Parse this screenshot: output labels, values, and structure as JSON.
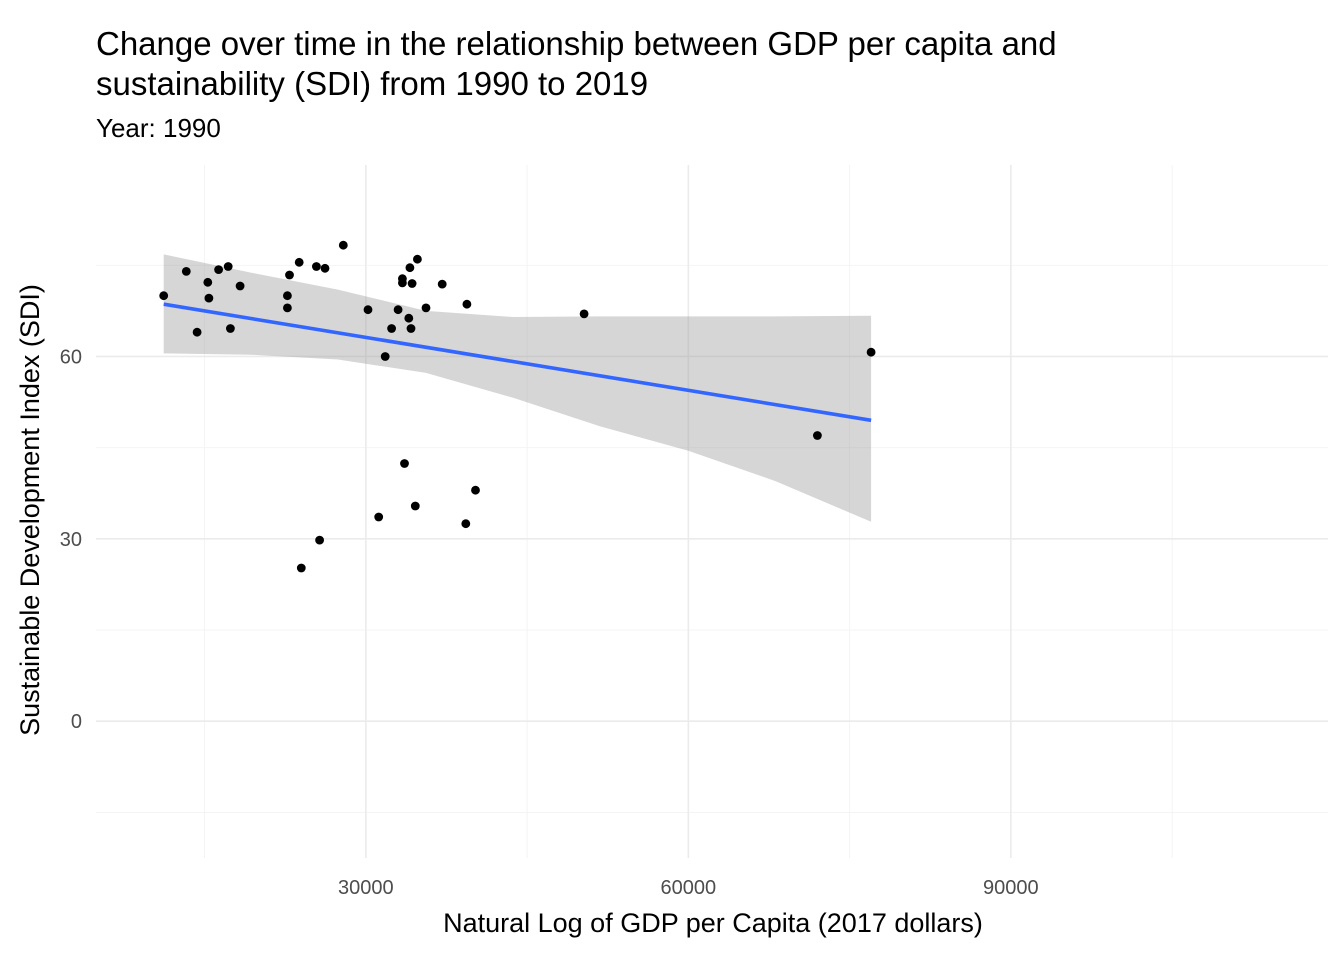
{
  "chart_data": {
    "type": "scatter",
    "title_lines": [
      "Change over time in the relationship between GDP per capita and",
      "sustainability (SDI) from 1990 to 2019"
    ],
    "subtitle": "Year: 1990",
    "xlabel": "Natural Log of GDP per Capita (2017 dollars)",
    "ylabel": "Sustainable Development Index (SDI)",
    "xlim": [
      4900,
      119500
    ],
    "ylim": [
      -22.5,
      91.5
    ],
    "x_ticks": [
      30000,
      60000,
      90000
    ],
    "x_tick_labels": [
      "30000",
      "60000",
      "90000"
    ],
    "y_ticks": [
      0,
      30,
      60
    ],
    "y_tick_labels": [
      "0",
      "30",
      "60"
    ],
    "x_minor_ticks": [
      15000,
      45000,
      75000,
      105000
    ],
    "y_minor_ticks": [
      -15,
      15,
      45,
      75
    ],
    "grid": true,
    "colors": {
      "points": "#000000",
      "trend_line": "#3366FF",
      "confidence_band": "#999999"
    },
    "points": [
      {
        "x": 11200,
        "y": 70.0
      },
      {
        "x": 13300,
        "y": 74.0
      },
      {
        "x": 14300,
        "y": 64.0
      },
      {
        "x": 15300,
        "y": 72.2
      },
      {
        "x": 15400,
        "y": 69.6
      },
      {
        "x": 16300,
        "y": 74.3
      },
      {
        "x": 17200,
        "y": 74.8
      },
      {
        "x": 17400,
        "y": 64.6
      },
      {
        "x": 18300,
        "y": 71.6
      },
      {
        "x": 22700,
        "y": 70.0
      },
      {
        "x": 22700,
        "y": 68.0
      },
      {
        "x": 22900,
        "y": 73.4
      },
      {
        "x": 23800,
        "y": 75.5
      },
      {
        "x": 24000,
        "y": 25.2
      },
      {
        "x": 25400,
        "y": 74.8
      },
      {
        "x": 25700,
        "y": 29.8
      },
      {
        "x": 26200,
        "y": 74.5
      },
      {
        "x": 27900,
        "y": 78.3
      },
      {
        "x": 30200,
        "y": 67.7
      },
      {
        "x": 31200,
        "y": 33.6
      },
      {
        "x": 31800,
        "y": 60.0
      },
      {
        "x": 32400,
        "y": 64.6
      },
      {
        "x": 33000,
        "y": 67.7
      },
      {
        "x": 33400,
        "y": 72.8
      },
      {
        "x": 33400,
        "y": 72.1
      },
      {
        "x": 33600,
        "y": 42.4
      },
      {
        "x": 34000,
        "y": 66.3
      },
      {
        "x": 34100,
        "y": 74.6
      },
      {
        "x": 34200,
        "y": 64.6
      },
      {
        "x": 34300,
        "y": 72.0
      },
      {
        "x": 34600,
        "y": 35.4
      },
      {
        "x": 34800,
        "y": 76.0
      },
      {
        "x": 35600,
        "y": 68.0
      },
      {
        "x": 37100,
        "y": 71.9
      },
      {
        "x": 39300,
        "y": 32.5
      },
      {
        "x": 39400,
        "y": 68.6
      },
      {
        "x": 40200,
        "y": 38.0
      },
      {
        "x": 50300,
        "y": 67.0
      },
      {
        "x": 72000,
        "y": 47.0
      },
      {
        "x": 77000,
        "y": 60.7
      }
    ],
    "trend": {
      "x": [
        11200,
        77000
      ],
      "y": [
        68.6,
        49.5
      ]
    },
    "confidence_band": {
      "x": [
        11200,
        19300,
        27400,
        35600,
        43700,
        51800,
        60000,
        68100,
        77000
      ],
      "upper": [
        76.8,
        73.8,
        71.0,
        67.5,
        66.5,
        66.6,
        66.6,
        66.6,
        66.7
      ],
      "lower": [
        60.5,
        60.3,
        59.5,
        57.3,
        53.2,
        48.5,
        44.5,
        39.5,
        32.8
      ]
    }
  }
}
